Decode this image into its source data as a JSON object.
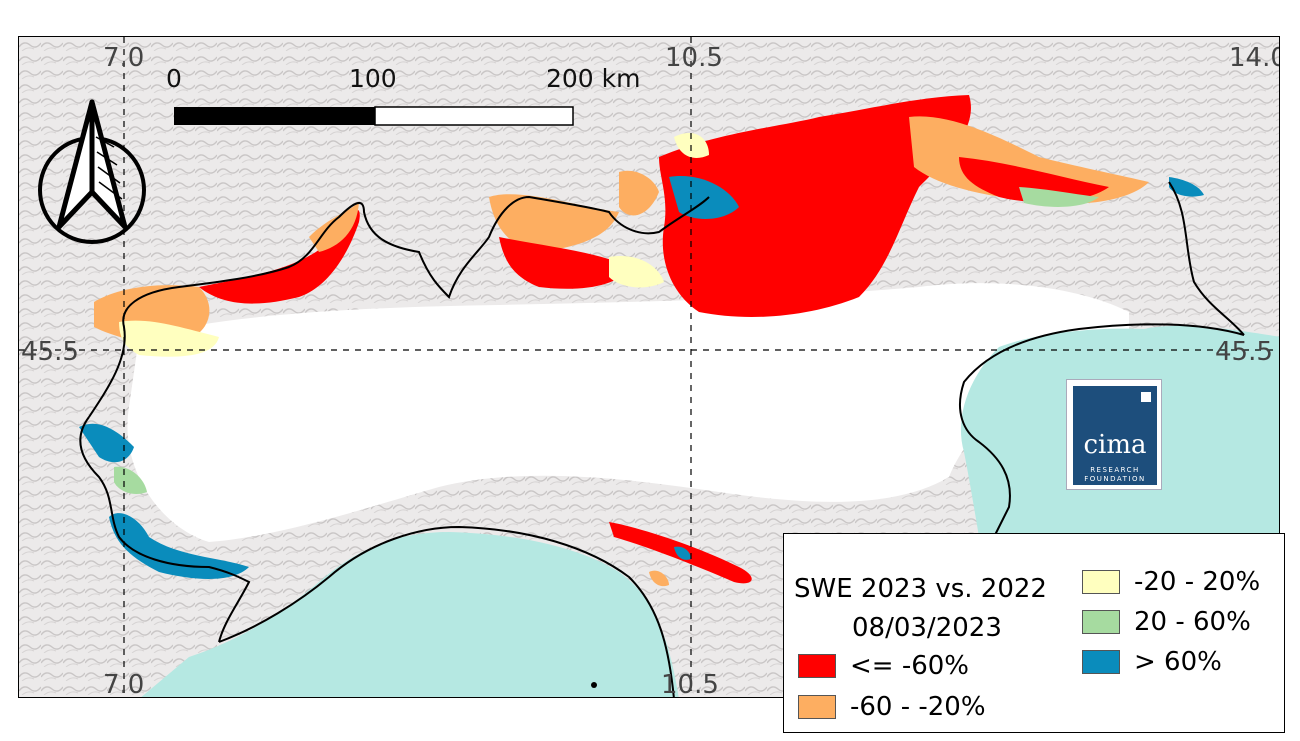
{
  "map": {
    "grid_labels": {
      "lon_top": [
        "7.0",
        "10.5",
        "14.0"
      ],
      "lon_bottom": [
        "7.0",
        "10.5"
      ],
      "lat_left": "45.5",
      "lat_right": "45.5"
    },
    "scale_bar": {
      "labels": [
        "0",
        "100",
        "200 km"
      ]
    },
    "north_arrow": "north-arrow-icon",
    "colors": {
      "sea": "#b5e8e2",
      "land_relief": "#e4e2e2",
      "plain": "#ffffff",
      "border": "#000000"
    }
  },
  "legend": {
    "title": "SWE 2023 vs. 2022",
    "date": "08/03/2023",
    "items": [
      {
        "label": "<= -60%",
        "color": "#ff0000"
      },
      {
        "label": "-60 - -20%",
        "color": "#fdae61"
      },
      {
        "label": "-20 - 20%",
        "color": "#ffffbf"
      },
      {
        "label": "20 - 60%",
        "color": "#a6dba0"
      },
      {
        "label": "> 60%",
        "color": "#0a8cbc"
      }
    ]
  },
  "logo": {
    "word": "cima",
    "line1": "RESEARCH",
    "line2": "FOUNDATION"
  }
}
